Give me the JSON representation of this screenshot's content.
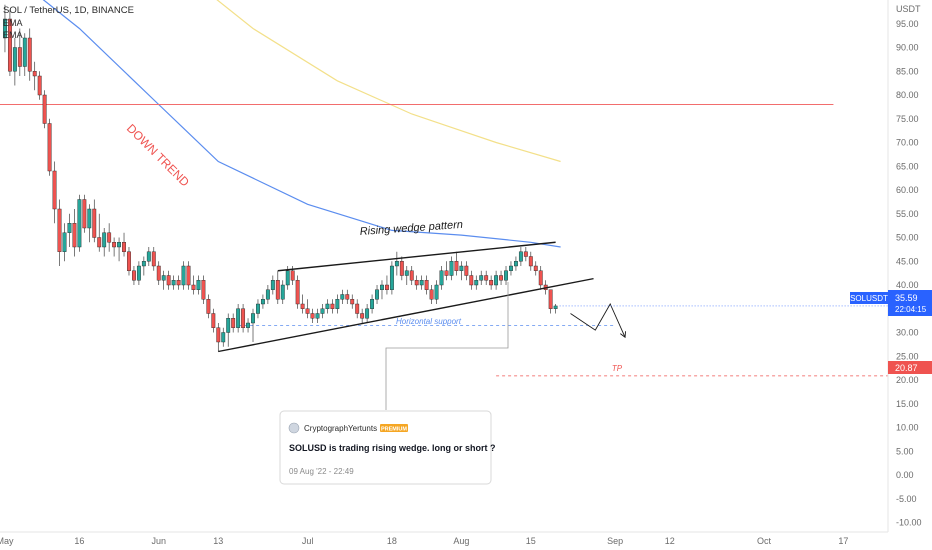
{
  "header": {
    "symbol_line": "SOL / TetherUS, 1D, BINANCE",
    "ema_labels": [
      "EMA",
      "EMA"
    ]
  },
  "currency": "USDT",
  "annotations": {
    "downtrend": "DOWN TREND",
    "wedge": "Rising wedge pattern",
    "support": "Horizontal support",
    "tp": "TP"
  },
  "badges": {
    "symbol": "SOLUSDT",
    "price": "35.59",
    "countdown": "22:04:15",
    "tp_price": "20.87"
  },
  "idea_card": {
    "author": "CryptographYertunts",
    "badge": "PREMIUM",
    "title": "SOLUSD is trading rising wedge. long or short ?",
    "date": "09 Aug '22 - 22:49"
  },
  "colors": {
    "up": "#26a69a",
    "down": "#ef5350",
    "ema_fast": "#5b8def",
    "ema_slow": "#f3e08a",
    "resistance": "#f26d6d",
    "tp": "#ef5350",
    "support": "#5b8def",
    "wedge": "#1a1a1a"
  },
  "chart_data": {
    "type": "candlestick",
    "y_axis": {
      "ticks": [
        95,
        90,
        85,
        80,
        75,
        70,
        65,
        60,
        55,
        50,
        45,
        40,
        35,
        30,
        25,
        20,
        15,
        10,
        5,
        0,
        -5,
        -10
      ],
      "tick_labels": [
        "95.00",
        "90.00",
        "85.00",
        "80.00",
        "75.00",
        "70.00",
        "65.00",
        "60.00",
        "55.00",
        "50.00",
        "45.00",
        "40.00",
        "35.00",
        "30.00",
        "25.00",
        "20.00",
        "15.00",
        "10.00",
        "5.00",
        "0.00",
        "-5.00",
        "-10.00"
      ],
      "range": [
        -12,
        100
      ]
    },
    "x_axis": {
      "tick_labels": [
        "May",
        "16",
        "Jun",
        "13",
        "Jul",
        "18",
        "Aug",
        "15",
        "Sep",
        "12",
        "Oct",
        "17"
      ],
      "tick_dates": [
        "2022-05-01",
        "2022-05-16",
        "2022-06-01",
        "2022-06-13",
        "2022-07-01",
        "2022-07-18",
        "2022-08-01",
        "2022-08-15",
        "2022-09-01",
        "2022-09-12",
        "2022-10-01",
        "2022-10-17"
      ],
      "range": [
        "2022-04-30",
        "2022-10-26"
      ]
    },
    "candles": [
      {
        "date": "2022-05-01",
        "o": 92,
        "h": 99,
        "l": 89,
        "c": 96
      },
      {
        "date": "2022-05-02",
        "o": 96,
        "h": 98,
        "l": 84,
        "c": 85
      },
      {
        "date": "2022-05-03",
        "o": 85,
        "h": 92,
        "l": 82,
        "c": 90
      },
      {
        "date": "2022-05-04",
        "o": 90,
        "h": 94,
        "l": 84,
        "c": 86
      },
      {
        "date": "2022-05-05",
        "o": 86,
        "h": 93,
        "l": 84,
        "c": 92
      },
      {
        "date": "2022-05-06",
        "o": 92,
        "h": 94,
        "l": 83,
        "c": 85
      },
      {
        "date": "2022-05-07",
        "o": 85,
        "h": 87,
        "l": 81,
        "c": 84
      },
      {
        "date": "2022-05-08",
        "o": 84,
        "h": 85,
        "l": 79,
        "c": 80
      },
      {
        "date": "2022-05-09",
        "o": 80,
        "h": 81,
        "l": 73,
        "c": 74
      },
      {
        "date": "2022-05-10",
        "o": 74,
        "h": 75,
        "l": 63,
        "c": 64
      },
      {
        "date": "2022-05-11",
        "o": 64,
        "h": 66,
        "l": 53,
        "c": 56
      },
      {
        "date": "2022-05-12",
        "o": 56,
        "h": 58,
        "l": 44,
        "c": 47
      },
      {
        "date": "2022-05-13",
        "o": 47,
        "h": 53,
        "l": 45,
        "c": 51
      },
      {
        "date": "2022-05-14",
        "o": 51,
        "h": 55,
        "l": 48,
        "c": 53
      },
      {
        "date": "2022-05-15",
        "o": 53,
        "h": 56,
        "l": 46,
        "c": 48
      },
      {
        "date": "2022-05-16",
        "o": 48,
        "h": 59,
        "l": 47,
        "c": 58
      },
      {
        "date": "2022-05-17",
        "o": 58,
        "h": 59,
        "l": 51,
        "c": 52
      },
      {
        "date": "2022-05-18",
        "o": 52,
        "h": 57,
        "l": 49,
        "c": 56
      },
      {
        "date": "2022-05-19",
        "o": 56,
        "h": 58,
        "l": 49,
        "c": 50
      },
      {
        "date": "2022-05-20",
        "o": 50,
        "h": 55,
        "l": 47,
        "c": 48
      },
      {
        "date": "2022-05-21",
        "o": 48,
        "h": 52,
        "l": 46,
        "c": 51
      },
      {
        "date": "2022-05-22",
        "o": 51,
        "h": 53,
        "l": 47,
        "c": 49
      },
      {
        "date": "2022-05-23",
        "o": 49,
        "h": 50,
        "l": 46,
        "c": 48
      },
      {
        "date": "2022-05-24",
        "o": 48,
        "h": 50,
        "l": 45,
        "c": 49
      },
      {
        "date": "2022-05-25",
        "o": 49,
        "h": 51,
        "l": 46,
        "c": 47
      },
      {
        "date": "2022-05-26",
        "o": 47,
        "h": 48,
        "l": 42,
        "c": 43
      },
      {
        "date": "2022-05-27",
        "o": 43,
        "h": 44,
        "l": 40,
        "c": 41
      },
      {
        "date": "2022-05-28",
        "o": 41,
        "h": 45,
        "l": 40,
        "c": 44
      },
      {
        "date": "2022-05-29",
        "o": 44,
        "h": 46,
        "l": 42,
        "c": 45
      },
      {
        "date": "2022-05-30",
        "o": 45,
        "h": 48,
        "l": 44,
        "c": 47
      },
      {
        "date": "2022-05-31",
        "o": 47,
        "h": 48,
        "l": 43,
        "c": 44
      },
      {
        "date": "2022-06-01",
        "o": 44,
        "h": 45,
        "l": 40,
        "c": 41
      },
      {
        "date": "2022-06-02",
        "o": 41,
        "h": 43,
        "l": 39,
        "c": 42
      },
      {
        "date": "2022-06-03",
        "o": 42,
        "h": 43,
        "l": 39,
        "c": 40
      },
      {
        "date": "2022-06-04",
        "o": 40,
        "h": 42,
        "l": 39,
        "c": 41
      },
      {
        "date": "2022-06-05",
        "o": 41,
        "h": 42,
        "l": 39,
        "c": 40
      },
      {
        "date": "2022-06-06",
        "o": 40,
        "h": 45,
        "l": 39,
        "c": 44
      },
      {
        "date": "2022-06-07",
        "o": 44,
        "h": 45,
        "l": 39,
        "c": 40
      },
      {
        "date": "2022-06-08",
        "o": 40,
        "h": 42,
        "l": 38,
        "c": 39
      },
      {
        "date": "2022-06-09",
        "o": 39,
        "h": 42,
        "l": 38,
        "c": 41
      },
      {
        "date": "2022-06-10",
        "o": 41,
        "h": 42,
        "l": 36,
        "c": 37
      },
      {
        "date": "2022-06-11",
        "o": 37,
        "h": 38,
        "l": 33,
        "c": 34
      },
      {
        "date": "2022-06-12",
        "o": 34,
        "h": 35,
        "l": 30,
        "c": 31
      },
      {
        "date": "2022-06-13",
        "o": 31,
        "h": 32,
        "l": 26,
        "c": 28
      },
      {
        "date": "2022-06-14",
        "o": 28,
        "h": 31,
        "l": 27,
        "c": 30
      },
      {
        "date": "2022-06-15",
        "o": 30,
        "h": 34,
        "l": 27,
        "c": 33
      },
      {
        "date": "2022-06-16",
        "o": 33,
        "h": 34,
        "l": 30,
        "c": 31
      },
      {
        "date": "2022-06-17",
        "o": 31,
        "h": 36,
        "l": 30,
        "c": 35
      },
      {
        "date": "2022-06-18",
        "o": 35,
        "h": 36,
        "l": 30,
        "c": 31
      },
      {
        "date": "2022-06-19",
        "o": 31,
        "h": 33,
        "l": 30,
        "c": 32
      },
      {
        "date": "2022-06-20",
        "o": 32,
        "h": 35,
        "l": 28,
        "c": 34
      },
      {
        "date": "2022-06-21",
        "o": 34,
        "h": 37,
        "l": 33,
        "c": 36
      },
      {
        "date": "2022-06-22",
        "o": 36,
        "h": 38,
        "l": 35,
        "c": 37
      },
      {
        "date": "2022-06-23",
        "o": 37,
        "h": 40,
        "l": 36,
        "c": 39
      },
      {
        "date": "2022-06-24",
        "o": 39,
        "h": 42,
        "l": 38,
        "c": 41
      },
      {
        "date": "2022-06-25",
        "o": 41,
        "h": 43,
        "l": 36,
        "c": 37
      },
      {
        "date": "2022-06-26",
        "o": 37,
        "h": 41,
        "l": 36,
        "c": 40
      },
      {
        "date": "2022-06-27",
        "o": 40,
        "h": 44,
        "l": 39,
        "c": 43
      },
      {
        "date": "2022-06-28",
        "o": 43,
        "h": 44,
        "l": 40,
        "c": 41
      },
      {
        "date": "2022-06-29",
        "o": 41,
        "h": 42,
        "l": 35,
        "c": 36
      },
      {
        "date": "2022-06-30",
        "o": 36,
        "h": 38,
        "l": 34,
        "c": 35
      },
      {
        "date": "2022-07-01",
        "o": 35,
        "h": 37,
        "l": 33,
        "c": 34
      },
      {
        "date": "2022-07-02",
        "o": 34,
        "h": 35,
        "l": 32,
        "c": 33
      },
      {
        "date": "2022-07-03",
        "o": 33,
        "h": 35,
        "l": 32,
        "c": 34
      },
      {
        "date": "2022-07-04",
        "o": 34,
        "h": 36,
        "l": 33,
        "c": 35
      },
      {
        "date": "2022-07-05",
        "o": 35,
        "h": 37,
        "l": 34,
        "c": 36
      },
      {
        "date": "2022-07-06",
        "o": 36,
        "h": 37,
        "l": 34,
        "c": 35
      },
      {
        "date": "2022-07-07",
        "o": 35,
        "h": 38,
        "l": 34,
        "c": 37
      },
      {
        "date": "2022-07-08",
        "o": 37,
        "h": 39,
        "l": 36,
        "c": 38
      },
      {
        "date": "2022-07-09",
        "o": 38,
        "h": 39,
        "l": 36,
        "c": 37
      },
      {
        "date": "2022-07-10",
        "o": 37,
        "h": 38,
        "l": 35,
        "c": 36
      },
      {
        "date": "2022-07-11",
        "o": 36,
        "h": 37,
        "l": 33,
        "c": 34
      },
      {
        "date": "2022-07-12",
        "o": 34,
        "h": 35,
        "l": 32,
        "c": 33
      },
      {
        "date": "2022-07-13",
        "o": 33,
        "h": 36,
        "l": 32,
        "c": 35
      },
      {
        "date": "2022-07-14",
        "o": 35,
        "h": 38,
        "l": 34,
        "c": 37
      },
      {
        "date": "2022-07-15",
        "o": 37,
        "h": 40,
        "l": 36,
        "c": 39
      },
      {
        "date": "2022-07-16",
        "o": 39,
        "h": 41,
        "l": 37,
        "c": 40
      },
      {
        "date": "2022-07-17",
        "o": 40,
        "h": 42,
        "l": 38,
        "c": 39
      },
      {
        "date": "2022-07-18",
        "o": 39,
        "h": 45,
        "l": 38,
        "c": 44
      },
      {
        "date": "2022-07-19",
        "o": 44,
        "h": 47,
        "l": 42,
        "c": 45
      },
      {
        "date": "2022-07-20",
        "o": 45,
        "h": 46,
        "l": 41,
        "c": 42
      },
      {
        "date": "2022-07-21",
        "o": 42,
        "h": 44,
        "l": 40,
        "c": 43
      },
      {
        "date": "2022-07-22",
        "o": 43,
        "h": 44,
        "l": 40,
        "c": 41
      },
      {
        "date": "2022-07-23",
        "o": 41,
        "h": 42,
        "l": 39,
        "c": 40
      },
      {
        "date": "2022-07-24",
        "o": 40,
        "h": 42,
        "l": 39,
        "c": 41
      },
      {
        "date": "2022-07-25",
        "o": 41,
        "h": 42,
        "l": 38,
        "c": 39
      },
      {
        "date": "2022-07-26",
        "o": 39,
        "h": 40,
        "l": 36,
        "c": 37
      },
      {
        "date": "2022-07-27",
        "o": 37,
        "h": 41,
        "l": 36,
        "c": 40
      },
      {
        "date": "2022-07-28",
        "o": 40,
        "h": 44,
        "l": 39,
        "c": 43
      },
      {
        "date": "2022-07-29",
        "o": 43,
        "h": 45,
        "l": 41,
        "c": 42
      },
      {
        "date": "2022-07-30",
        "o": 42,
        "h": 46,
        "l": 41,
        "c": 45
      },
      {
        "date": "2022-07-31",
        "o": 45,
        "h": 47,
        "l": 42,
        "c": 43
      },
      {
        "date": "2022-08-01",
        "o": 43,
        "h": 45,
        "l": 41,
        "c": 44
      },
      {
        "date": "2022-08-02",
        "o": 44,
        "h": 45,
        "l": 41,
        "c": 42
      },
      {
        "date": "2022-08-03",
        "o": 42,
        "h": 43,
        "l": 39,
        "c": 40
      },
      {
        "date": "2022-08-04",
        "o": 40,
        "h": 42,
        "l": 39,
        "c": 41
      },
      {
        "date": "2022-08-05",
        "o": 41,
        "h": 43,
        "l": 40,
        "c": 42
      },
      {
        "date": "2022-08-06",
        "o": 42,
        "h": 43,
        "l": 40,
        "c": 41
      },
      {
        "date": "2022-08-07",
        "o": 41,
        "h": 42,
        "l": 39,
        "c": 40
      },
      {
        "date": "2022-08-08",
        "o": 40,
        "h": 43,
        "l": 39,
        "c": 42
      },
      {
        "date": "2022-08-09",
        "o": 42,
        "h": 43,
        "l": 40,
        "c": 41
      },
      {
        "date": "2022-08-10",
        "o": 41,
        "h": 44,
        "l": 40,
        "c": 43
      },
      {
        "date": "2022-08-11",
        "o": 43,
        "h": 45,
        "l": 42,
        "c": 44
      },
      {
        "date": "2022-08-12",
        "o": 44,
        "h": 46,
        "l": 43,
        "c": 45
      },
      {
        "date": "2022-08-13",
        "o": 45,
        "h": 48,
        "l": 44,
        "c": 47
      },
      {
        "date": "2022-08-14",
        "o": 47,
        "h": 48,
        "l": 45,
        "c": 46
      },
      {
        "date": "2022-08-15",
        "o": 46,
        "h": 47,
        "l": 43,
        "c": 44
      },
      {
        "date": "2022-08-16",
        "o": 44,
        "h": 45,
        "l": 42,
        "c": 43
      },
      {
        "date": "2022-08-17",
        "o": 43,
        "h": 44,
        "l": 39,
        "c": 40
      },
      {
        "date": "2022-08-18",
        "o": 40,
        "h": 41,
        "l": 38,
        "c": 39
      },
      {
        "date": "2022-08-19",
        "o": 39,
        "h": 39,
        "l": 34,
        "c": 35
      },
      {
        "date": "2022-08-20",
        "o": 35,
        "h": 36,
        "l": 34,
        "c": 35.59
      }
    ],
    "ema_fast": [
      {
        "date": "2022-05-04",
        "v": 104
      },
      {
        "date": "2022-05-16",
        "v": 94
      },
      {
        "date": "2022-06-01",
        "v": 78
      },
      {
        "date": "2022-06-13",
        "v": 66
      },
      {
        "date": "2022-07-01",
        "v": 57
      },
      {
        "date": "2022-07-18",
        "v": 51.5
      },
      {
        "date": "2022-08-01",
        "v": 50.5
      },
      {
        "date": "2022-08-15",
        "v": 49
      },
      {
        "date": "2022-08-21",
        "v": 48
      }
    ],
    "ema_slow": [
      {
        "date": "2022-06-08",
        "v": 104
      },
      {
        "date": "2022-06-20",
        "v": 94
      },
      {
        "date": "2022-07-07",
        "v": 83
      },
      {
        "date": "2022-07-22",
        "v": 76
      },
      {
        "date": "2022-08-08",
        "v": 70
      },
      {
        "date": "2022-08-21",
        "v": 66
      }
    ],
    "levels": {
      "resistance": 78,
      "horizontal_support": 31.5,
      "tp": 20.87
    },
    "wedge": {
      "upper": [
        {
          "date": "2022-06-25",
          "v": 43
        },
        {
          "date": "2022-08-20",
          "v": 49
        }
      ],
      "lower": [
        {
          "date": "2022-06-13",
          "v": 26
        },
        {
          "date": "2022-08-22",
          "v": 40.5
        }
      ]
    },
    "projection": [
      {
        "date": "2022-08-23",
        "v": 34
      },
      {
        "date": "2022-08-28",
        "v": 30.5
      },
      {
        "date": "2022-08-31",
        "v": 36
      },
      {
        "date": "2022-09-03",
        "v": 29
      }
    ],
    "last_price": 35.59
  }
}
